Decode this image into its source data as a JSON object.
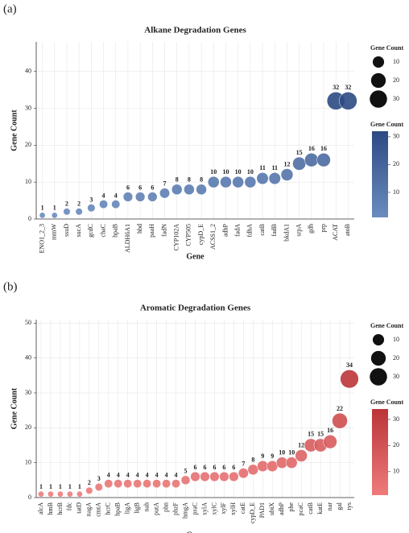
{
  "chart_data": [
    {
      "type": "bubble",
      "panel_label": "(a)",
      "title": "Alkane Degradation Genes",
      "x_label": "Gene",
      "y_label": "Gene Count",
      "categories": [
        "ENO1_2_3",
        "mtnW",
        "ssuD",
        "sucA",
        "gcdC",
        "chaC",
        "hpaB",
        "ALDH6A1",
        "hbd",
        "paaH",
        "fadN",
        "CYP102A",
        "CYP505",
        "cypD_E",
        "ACSS1_2",
        "adhP",
        "fadA",
        "fdhA",
        "catB",
        "fadB",
        "bkdA1",
        "srpA",
        "gdh",
        "prp",
        "ACAT",
        "atoB"
      ],
      "values": [
        1,
        1,
        2,
        2,
        3,
        4,
        4,
        6,
        6,
        6,
        7,
        8,
        8,
        8,
        10,
        10,
        10,
        10,
        11,
        11,
        12,
        15,
        16,
        16,
        32,
        32
      ],
      "ylim": [
        0,
        48
      ],
      "yticks": [
        0,
        10,
        20,
        30,
        40
      ],
      "grid": true,
      "size_legend": {
        "title": "Gene Count",
        "values": [
          10,
          20,
          30
        ]
      },
      "colorbar": {
        "title": "Gene Count",
        "lim": [
          1,
          32
        ],
        "ticks": [
          10,
          20,
          30
        ],
        "colors": [
          "#6a8cbf",
          "#2c4a83"
        ]
      }
    },
    {
      "type": "bubble",
      "panel_label": "(b)",
      "title": "Aromatic Degradation Genes",
      "x_label": "Gene",
      "y_label": "Gene Count",
      "categories": [
        "alcA",
        "hmB",
        "hcrB",
        "fdc",
        "tatD",
        "nagA",
        "cmtA",
        "hcrC",
        "hpaB",
        "ligA",
        "ligB",
        "nah",
        "putA",
        "phn",
        "phzF",
        "hmgA",
        "praC",
        "xylA",
        "xylC",
        "xylF",
        "xylH",
        "catE",
        "cypD_E",
        "PAD1",
        "ubiX",
        "adhP",
        "phe",
        "pcaC",
        "catB",
        "katE",
        "nar",
        "gal",
        "tys"
      ],
      "values": [
        1,
        1,
        1,
        1,
        1,
        2,
        3,
        4,
        4,
        4,
        4,
        4,
        4,
        4,
        4,
        5,
        6,
        6,
        6,
        6,
        6,
        7,
        8,
        9,
        9,
        10,
        10,
        12,
        15,
        15,
        16,
        22,
        34
      ],
      "ylim": [
        0,
        51
      ],
      "yticks": [
        0,
        10,
        20,
        30,
        40,
        50
      ],
      "grid": true,
      "size_legend": {
        "title": "Gene Count",
        "values": [
          10,
          20,
          30
        ]
      },
      "colorbar": {
        "title": "Gene Count",
        "lim": [
          1,
          34
        ],
        "ticks": [
          10,
          20,
          30
        ],
        "colors": [
          "#ee7b7b",
          "#bb3538"
        ]
      }
    }
  ]
}
